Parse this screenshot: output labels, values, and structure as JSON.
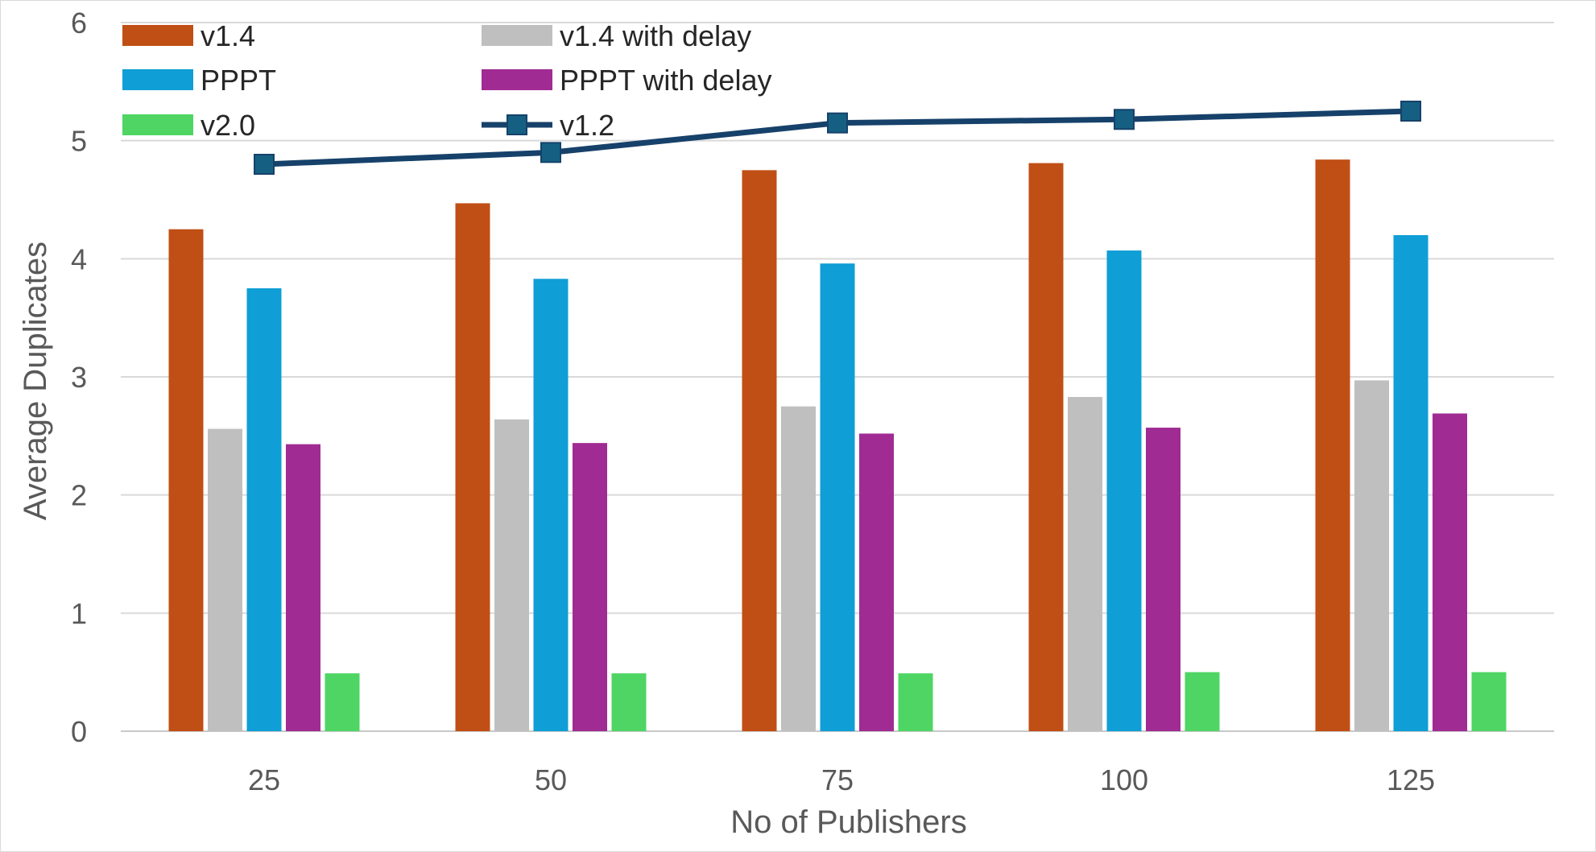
{
  "chart_data": {
    "type": "bar",
    "title": "",
    "xlabel": "No of Publishers",
    "ylabel": "Average Duplicates",
    "categories": [
      "25",
      "50",
      "75",
      "100",
      "125"
    ],
    "ylim": [
      0,
      6
    ],
    "yticks": [
      "0",
      "1",
      "2",
      "3",
      "4",
      "5",
      "6"
    ],
    "grid": true,
    "legend_position": "top-left",
    "series": [
      {
        "name": "v1.4",
        "kind": "bar",
        "color": "#C04F15",
        "values": [
          4.25,
          4.47,
          4.75,
          4.81,
          4.84
        ]
      },
      {
        "name": "v1.4 with delay",
        "kind": "bar",
        "color": "#BFBFBF",
        "values": [
          2.56,
          2.64,
          2.75,
          2.83,
          2.97
        ]
      },
      {
        "name": "PPPT",
        "kind": "bar",
        "color": "#0F9ED5",
        "values": [
          3.75,
          3.83,
          3.96,
          4.07,
          4.2
        ]
      },
      {
        "name": "PPPT with delay",
        "kind": "bar",
        "color": "#A02B93",
        "values": [
          2.43,
          2.44,
          2.52,
          2.57,
          2.69
        ]
      },
      {
        "name": "v2.0",
        "kind": "bar",
        "color": "#4ED563",
        "values": [
          0.49,
          0.49,
          0.49,
          0.5,
          0.5
        ]
      },
      {
        "name": "v1.2",
        "kind": "line",
        "color": "#16416A",
        "marker_color": "#156082",
        "values": [
          4.8,
          4.9,
          5.15,
          5.18,
          5.25
        ]
      }
    ]
  }
}
